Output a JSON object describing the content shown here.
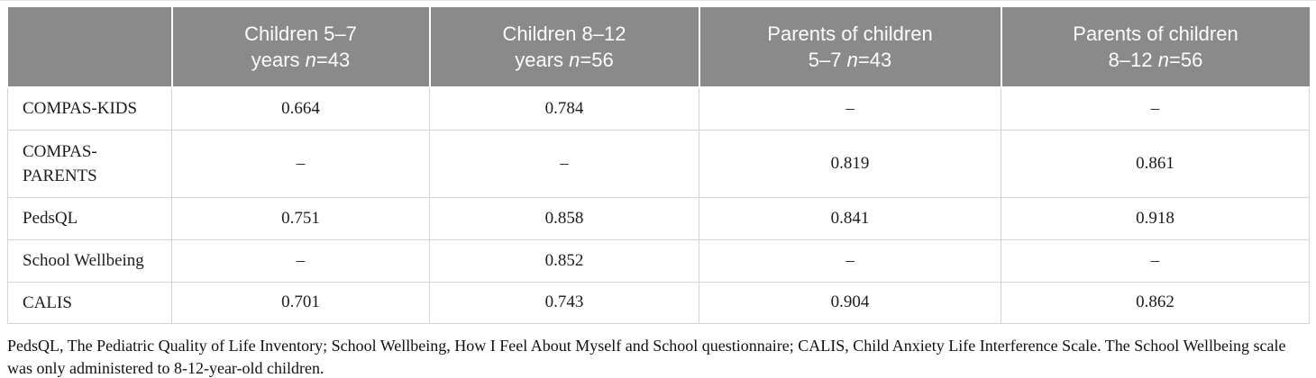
{
  "table": {
    "columns": [
      {
        "line1": "Children 5–7",
        "line2_pre": "years ",
        "n_italic": "n",
        "line2_post": "=43"
      },
      {
        "line1": "Children 8–12",
        "line2_pre": "years ",
        "n_italic": "n",
        "line2_post": "=56"
      },
      {
        "line1": "Parents of children",
        "line2_pre": "5–7 ",
        "n_italic": "n",
        "line2_post": "=43"
      },
      {
        "line1": "Parents of children",
        "line2_pre": "8–12 ",
        "n_italic": "n",
        "line2_post": "=56"
      }
    ],
    "rows": [
      {
        "label": "COMPAS-KIDS",
        "values": [
          "0.664",
          "0.784",
          "–",
          "–"
        ]
      },
      {
        "label": "COMPAS-PARENTS",
        "values": [
          "–",
          "–",
          "0.819",
          "0.861"
        ]
      },
      {
        "label": "PedsQL",
        "values": [
          "0.751",
          "0.858",
          "0.841",
          "0.918"
        ]
      },
      {
        "label": "School Wellbeing",
        "values": [
          "–",
          "0.852",
          "–",
          "–"
        ]
      },
      {
        "label": "CALIS",
        "values": [
          "0.701",
          "0.743",
          "0.904",
          "0.862"
        ]
      }
    ],
    "footnote": "PedsQL, The Pediatric Quality of Life Inventory; School Wellbeing, How I Feel About Myself and School questionnaire; CALIS, Child Anxiety Life Interference Scale. The School Wellbeing scale was only administered to 8-12-year-old children.",
    "colors": {
      "header_background": "#8a8a8a",
      "header_text": "#fdfdfd",
      "body_border": "#d4d4d4",
      "body_text": "#1c1c1c"
    }
  },
  "chart_data": {
    "type": "table",
    "title": "",
    "columns": [
      "",
      "Children 5–7 years n=43",
      "Children 8–12 years n=56",
      "Parents of children 5–7 n=43",
      "Parents of children 8–12 n=56"
    ],
    "rows": [
      [
        "COMPAS-KIDS",
        0.664,
        0.784,
        null,
        null
      ],
      [
        "COMPAS-PARENTS",
        null,
        null,
        0.819,
        0.861
      ],
      [
        "PedsQL",
        0.751,
        0.858,
        0.841,
        0.918
      ],
      [
        "School Wellbeing",
        null,
        0.852,
        null,
        null
      ],
      [
        "CALIS",
        0.701,
        0.743,
        0.904,
        0.862
      ]
    ]
  }
}
